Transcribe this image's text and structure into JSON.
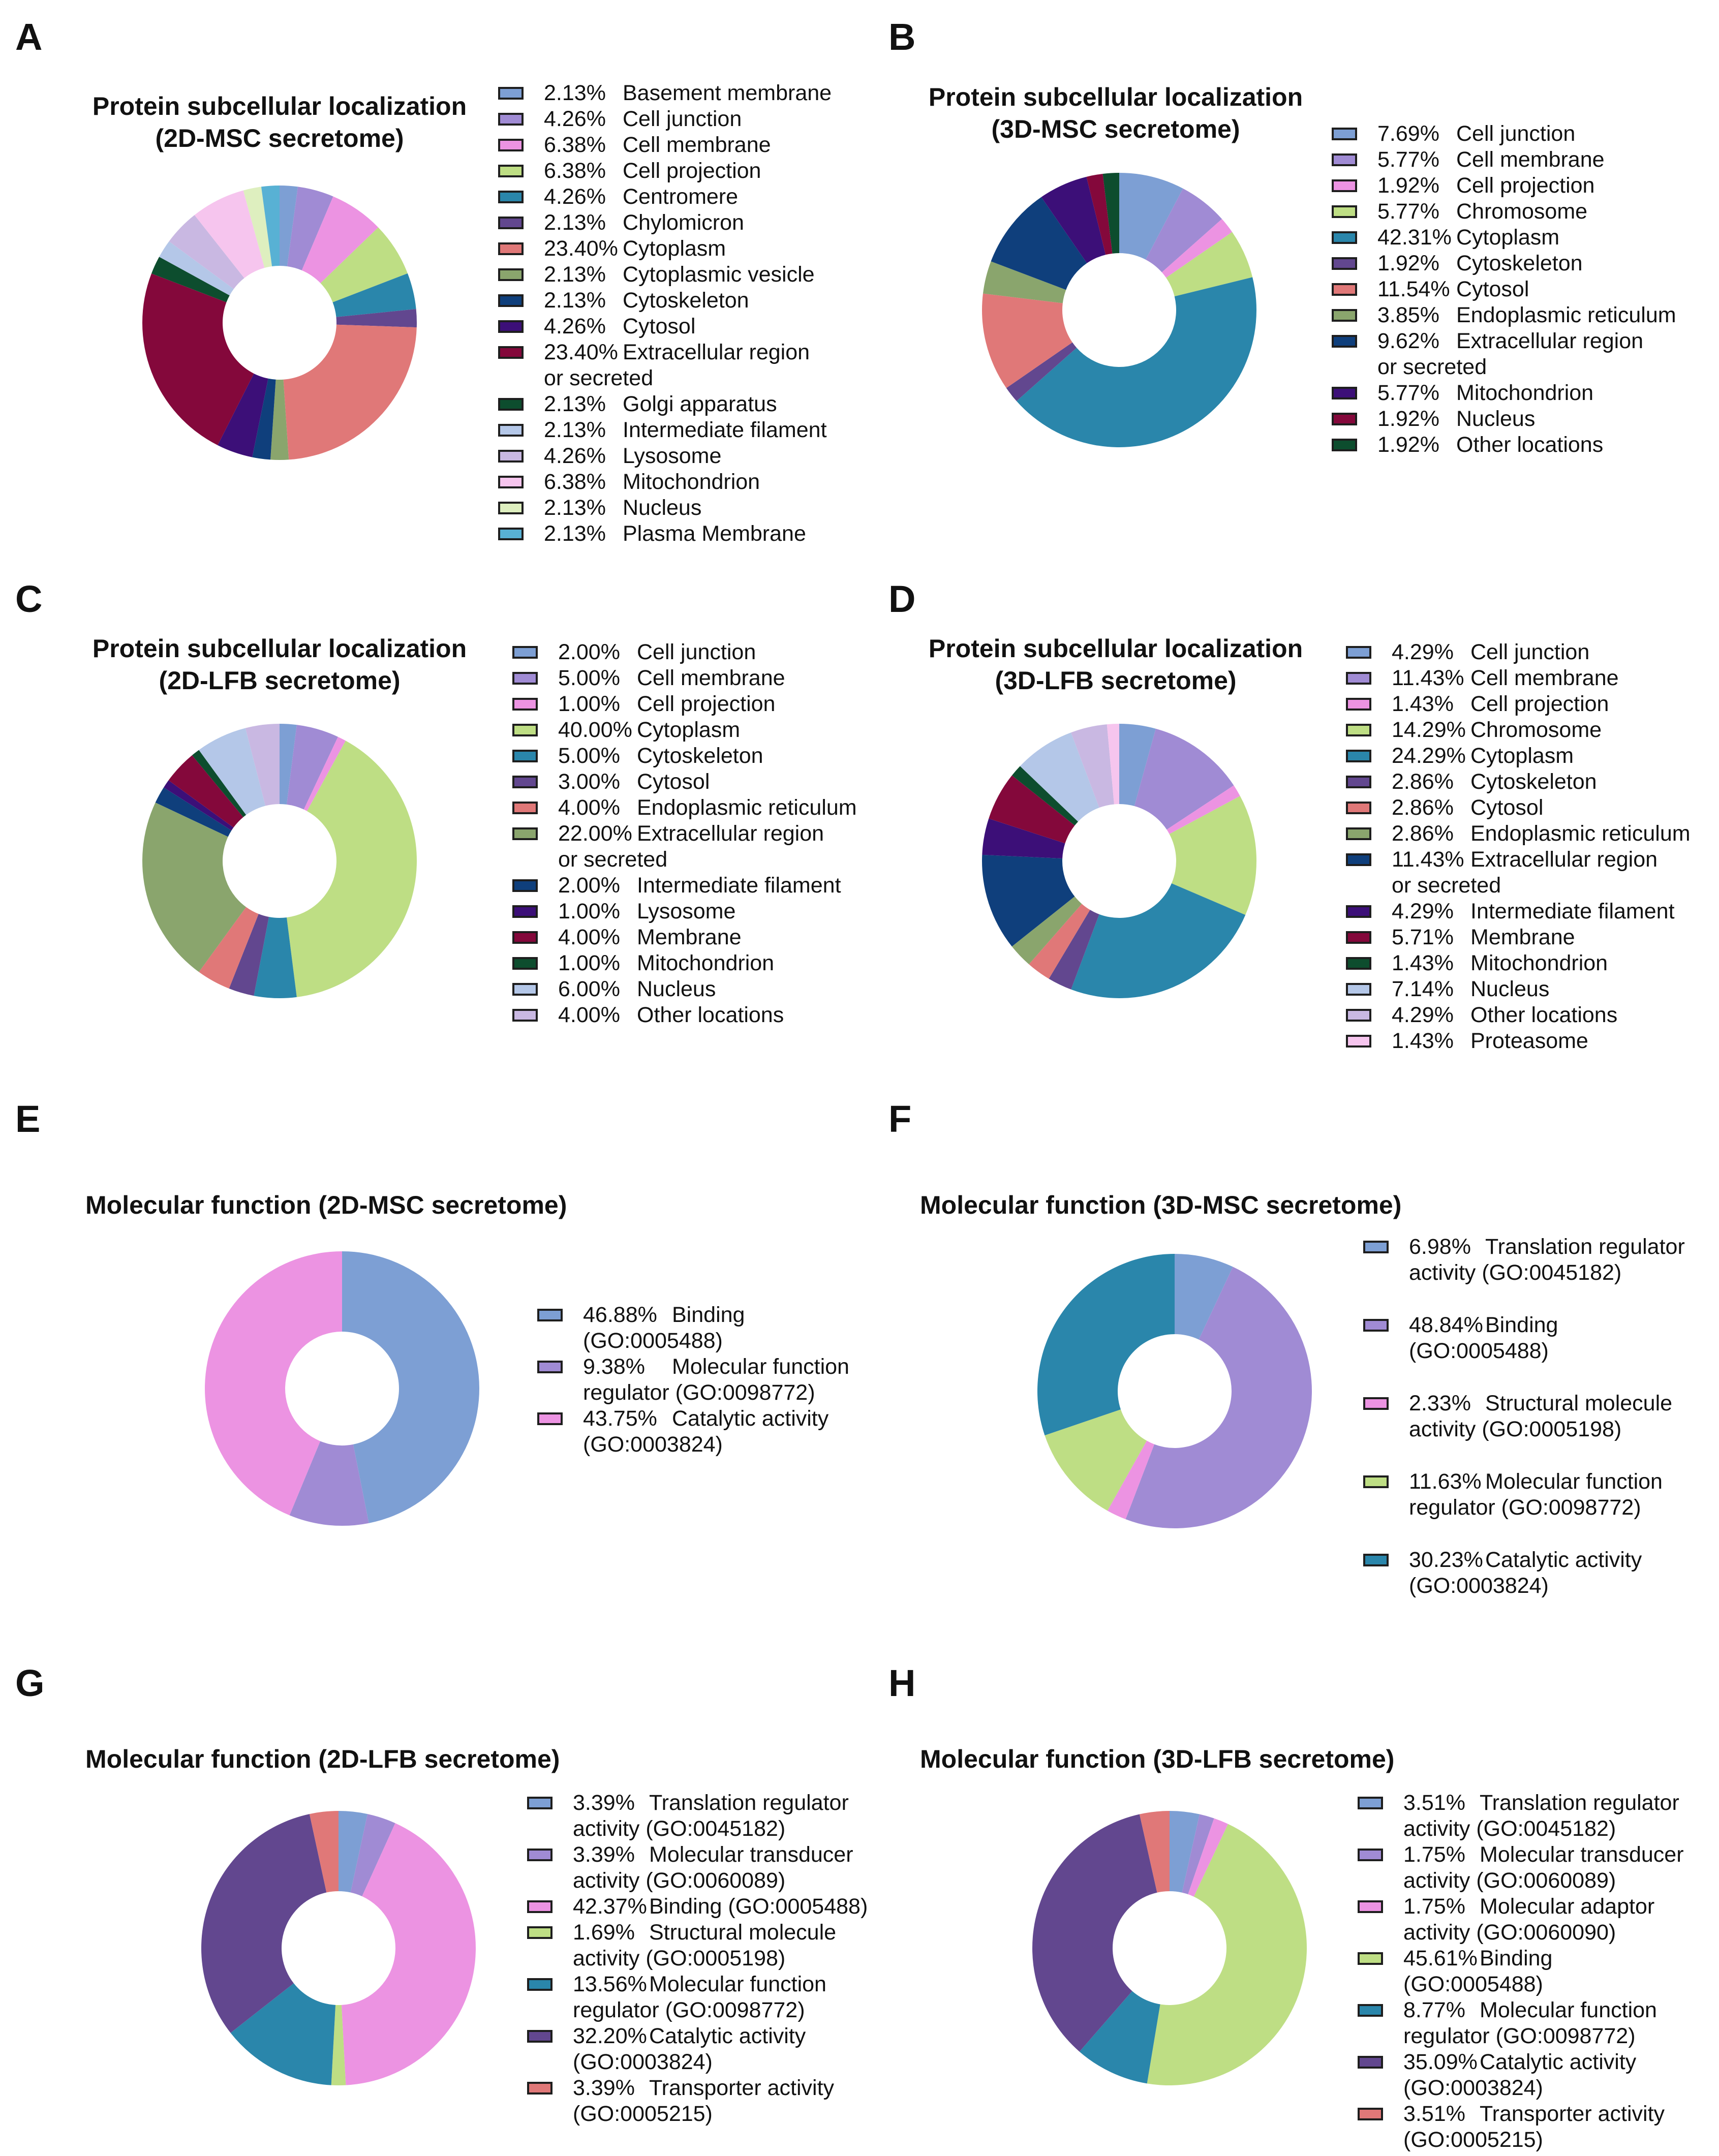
{
  "palette": {
    "c_blue": "#7d9fd4",
    "c_lav": "#a08bd4",
    "c_pink": "#ec93e2",
    "c_lime": "#bede84",
    "c_teal": "#2a86ab",
    "c_purple": "#62478f",
    "c_salmon": "#e07878",
    "c_sage": "#8aa56d",
    "c_navy": "#0f3f7c",
    "c_indigo": "#3c0f78",
    "c_maroon": "#84083b",
    "c_green": "#0d4d2e",
    "c_lblue": "#b4c7e8",
    "c_llav": "#c9b8e2",
    "c_lpink": "#f6c5ee",
    "c_lgreen": "#deefbf",
    "c_cyan": "#58b1d4"
  },
  "panels": [
    {
      "letter": "A",
      "title": [
        "Protein subcellular localization",
        "(2D-MSC secretome)"
      ]
    },
    {
      "letter": "B",
      "title": [
        "Protein subcellular localization",
        "(3D-MSC secretome)"
      ]
    },
    {
      "letter": "C",
      "title": [
        "Protein subcellular localization",
        "(2D-LFB secretome)"
      ]
    },
    {
      "letter": "D",
      "title": [
        "Protein subcellular localization",
        "(3D-LFB secretome)"
      ]
    },
    {
      "letter": "E",
      "title": [
        "Molecular function (2D-MSC secretome)"
      ]
    },
    {
      "letter": "F",
      "title": [
        "Molecular function (3D-MSC secretome)"
      ]
    },
    {
      "letter": "G",
      "title": [
        "Molecular function (2D-LFB secretome)"
      ]
    },
    {
      "letter": "H",
      "title": [
        "Molecular function (3D-LFB secretome)"
      ]
    }
  ],
  "chart_data": [
    {
      "type": "pie",
      "id": "A",
      "title": "Protein subcellular localization (2D-MSC secretome)",
      "donut": true,
      "legend": "right",
      "slices": [
        {
          "label": "Basement membrane",
          "pct": "2.13%",
          "value": 2.13,
          "color": "#7d9fd4"
        },
        {
          "label": "Cell junction",
          "pct": "4.26%",
          "value": 4.26,
          "color": "#a08bd4"
        },
        {
          "label": "Cell membrane",
          "pct": "6.38%",
          "value": 6.38,
          "color": "#ec93e2"
        },
        {
          "label": "Cell projection",
          "pct": "6.38%",
          "value": 6.38,
          "color": "#bede84"
        },
        {
          "label": "Centromere",
          "pct": "4.26%",
          "value": 4.26,
          "color": "#2a86ab"
        },
        {
          "label": "Chylomicron",
          "pct": "2.13%",
          "value": 2.13,
          "color": "#62478f"
        },
        {
          "label": "Cytoplasm",
          "pct": "23.40%",
          "value": 23.4,
          "color": "#e07878"
        },
        {
          "label": "Cytoplasmic vesicle",
          "pct": "2.13%",
          "value": 2.13,
          "color": "#8aa56d"
        },
        {
          "label": "Cytoskeleton",
          "pct": "2.13%",
          "value": 2.13,
          "color": "#0f3f7c"
        },
        {
          "label": "Cytosol",
          "pct": "4.26%",
          "value": 4.26,
          "color": "#3c0f78"
        },
        {
          "label": "Extracellular region",
          "cont": "or secreted",
          "pct": "23.40%",
          "value": 23.4,
          "color": "#84083b"
        },
        {
          "label": "Golgi apparatus",
          "pct": "2.13%",
          "value": 2.13,
          "color": "#0d4d2e"
        },
        {
          "label": "Intermediate filament",
          "pct": "2.13%",
          "value": 2.13,
          "color": "#b4c7e8"
        },
        {
          "label": "Lysosome",
          "pct": "4.26%",
          "value": 4.26,
          "color": "#c9b8e2"
        },
        {
          "label": "Mitochondrion",
          "pct": "6.38%",
          "value": 6.38,
          "color": "#f6c5ee"
        },
        {
          "label": "Nucleus",
          "pct": "2.13%",
          "value": 2.13,
          "color": "#deefbf"
        },
        {
          "label": "Plasma Membrane",
          "pct": "2.13%",
          "value": 2.13,
          "color": "#58b1d4"
        }
      ]
    },
    {
      "type": "pie",
      "id": "B",
      "title": "Protein subcellular localization (3D-MSC secretome)",
      "donut": true,
      "legend": "right",
      "slices": [
        {
          "label": "Cell junction",
          "pct": "7.69%",
          "value": 7.69,
          "color": "#7d9fd4"
        },
        {
          "label": "Cell membrane",
          "pct": "5.77%",
          "value": 5.77,
          "color": "#a08bd4"
        },
        {
          "label": "Cell projection",
          "pct": "1.92%",
          "value": 1.92,
          "color": "#ec93e2"
        },
        {
          "label": "Chromosome",
          "pct": "5.77%",
          "value": 5.77,
          "color": "#bede84"
        },
        {
          "label": "Cytoplasm",
          "pct": "42.31%",
          "value": 42.31,
          "color": "#2a86ab"
        },
        {
          "label": "Cytoskeleton",
          "pct": "1.92%",
          "value": 1.92,
          "color": "#62478f"
        },
        {
          "label": "Cytosol",
          "pct": "11.54%",
          "value": 11.54,
          "color": "#e07878"
        },
        {
          "label": "Endoplasmic reticulum",
          "pct": "3.85%",
          "value": 3.85,
          "color": "#8aa56d"
        },
        {
          "label": "Extracellular region",
          "cont": "or secreted",
          "pct": "9.62%",
          "value": 9.62,
          "color": "#0f3f7c"
        },
        {
          "label": "Mitochondrion",
          "pct": "5.77%",
          "value": 5.77,
          "color": "#3c0f78"
        },
        {
          "label": "Nucleus",
          "pct": "1.92%",
          "value": 1.92,
          "color": "#84083b"
        },
        {
          "label": "Other locations",
          "pct": "1.92%",
          "value": 1.92,
          "color": "#0d4d2e"
        }
      ]
    },
    {
      "type": "pie",
      "id": "C",
      "title": "Protein subcellular localization (2D-LFB secretome)",
      "donut": true,
      "legend": "right",
      "slices": [
        {
          "label": "Cell junction",
          "pct": "2.00%",
          "value": 2.0,
          "color": "#7d9fd4"
        },
        {
          "label": "Cell membrane",
          "pct": "5.00%",
          "value": 5.0,
          "color": "#a08bd4"
        },
        {
          "label": "Cell projection",
          "pct": "1.00%",
          "value": 1.0,
          "color": "#ec93e2"
        },
        {
          "label": "Cytoplasm",
          "pct": "40.00%",
          "value": 40.0,
          "color": "#bede84"
        },
        {
          "label": "Cytoskeleton",
          "pct": "5.00%",
          "value": 5.0,
          "color": "#2a86ab"
        },
        {
          "label": "Cytosol",
          "pct": "3.00%",
          "value": 3.0,
          "color": "#62478f"
        },
        {
          "label": "Endoplasmic reticulum",
          "pct": "4.00%",
          "value": 4.0,
          "color": "#e07878"
        },
        {
          "label": "Extracellular region",
          "cont": "or secreted",
          "pct": "22.00%",
          "value": 22.0,
          "color": "#8aa56d"
        },
        {
          "label": "Intermediate filament",
          "pct": "2.00%",
          "value": 2.0,
          "color": "#0f3f7c"
        },
        {
          "label": "Lysosome",
          "pct": "1.00%",
          "value": 1.0,
          "color": "#3c0f78"
        },
        {
          "label": "Membrane",
          "pct": "4.00%",
          "value": 4.0,
          "color": "#84083b"
        },
        {
          "label": "Mitochondrion",
          "pct": "1.00%",
          "value": 1.0,
          "color": "#0d4d2e"
        },
        {
          "label": "Nucleus",
          "pct": "6.00%",
          "value": 6.0,
          "color": "#b4c7e8"
        },
        {
          "label": "Other locations",
          "pct": "4.00%",
          "value": 4.0,
          "color": "#c9b8e2"
        }
      ]
    },
    {
      "type": "pie",
      "id": "D",
      "title": "Protein subcellular localization (3D-LFB secretome)",
      "donut": true,
      "legend": "right",
      "slices": [
        {
          "label": "Cell junction",
          "pct": "4.29%",
          "value": 4.29,
          "color": "#7d9fd4"
        },
        {
          "label": "Cell membrane",
          "pct": "11.43%",
          "value": 11.43,
          "color": "#a08bd4"
        },
        {
          "label": "Cell projection",
          "pct": "1.43%",
          "value": 1.43,
          "color": "#ec93e2"
        },
        {
          "label": "Chromosome",
          "pct": "14.29%",
          "value": 14.29,
          "color": "#bede84"
        },
        {
          "label": "Cytoplasm",
          "pct": "24.29%",
          "value": 24.29,
          "color": "#2a86ab"
        },
        {
          "label": "Cytoskeleton",
          "pct": "2.86%",
          "value": 2.86,
          "color": "#62478f"
        },
        {
          "label": "Cytosol",
          "pct": "2.86%",
          "value": 2.86,
          "color": "#e07878"
        },
        {
          "label": "Endoplasmic reticulum",
          "pct": "2.86%",
          "value": 2.86,
          "color": "#8aa56d"
        },
        {
          "label": "Extracellular region",
          "cont": "or secreted",
          "pct": "11.43%",
          "value": 11.43,
          "color": "#0f3f7c"
        },
        {
          "label": "Intermediate filament",
          "pct": "4.29%",
          "value": 4.29,
          "color": "#3c0f78"
        },
        {
          "label": "Membrane",
          "pct": "5.71%",
          "value": 5.71,
          "color": "#84083b"
        },
        {
          "label": "Mitochondrion",
          "pct": "1.43%",
          "value": 1.43,
          "color": "#0d4d2e"
        },
        {
          "label": "Nucleus",
          "pct": "7.14%",
          "value": 7.14,
          "color": "#b4c7e8"
        },
        {
          "label": "Other locations",
          "pct": "4.29%",
          "value": 4.29,
          "color": "#c9b8e2"
        },
        {
          "label": "Proteasome",
          "pct": "1.43%",
          "value": 1.43,
          "color": "#f6c5ee"
        }
      ]
    },
    {
      "type": "pie",
      "id": "E",
      "title": "Molecular function (2D-MSC secretome)",
      "donut": true,
      "legend": "right",
      "slices": [
        {
          "label": "Binding",
          "cont": "(GO:0005488)",
          "pct": "46.88%",
          "value": 46.88,
          "color": "#7d9fd4"
        },
        {
          "label": "Molecular function",
          "cont": "regulator (GO:0098772)",
          "pct": "9.38%",
          "value": 9.38,
          "color": "#a08bd4"
        },
        {
          "label": "Catalytic activity",
          "cont": "(GO:0003824)",
          "pct": "43.75%",
          "value": 43.75,
          "color": "#ec93e2"
        }
      ]
    },
    {
      "type": "pie",
      "id": "F",
      "title": "Molecular function (3D-MSC secretome)",
      "donut": true,
      "legend": "right",
      "slices": [
        {
          "label": "Translation regulator",
          "cont": "activity (GO:0045182)",
          "pct": "6.98%",
          "value": 6.98,
          "color": "#7d9fd4"
        },
        {
          "label": "Binding",
          "cont": "(GO:0005488)",
          "pct": "48.84%",
          "value": 48.84,
          "color": "#a08bd4"
        },
        {
          "label": "Structural molecule",
          "cont": "activity (GO:0005198)",
          "pct": "2.33%",
          "value": 2.33,
          "color": "#ec93e2"
        },
        {
          "label": "Molecular function",
          "cont": "regulator (GO:0098772)",
          "pct": "11.63%",
          "value": 11.63,
          "color": "#bede84"
        },
        {
          "label": "Catalytic activity",
          "cont": "(GO:0003824)",
          "pct": "30.23%",
          "value": 30.23,
          "color": "#2a86ab"
        }
      ]
    },
    {
      "type": "pie",
      "id": "G",
      "title": "Molecular function (2D-LFB secretome)",
      "donut": true,
      "legend": "right",
      "slices": [
        {
          "label": "Translation regulator",
          "cont": "activity (GO:0045182)",
          "pct": "3.39%",
          "value": 3.39,
          "color": "#7d9fd4"
        },
        {
          "label": "Molecular transducer",
          "cont": "activity (GO:0060089)",
          "pct": "3.39%",
          "value": 3.39,
          "color": "#a08bd4"
        },
        {
          "label": "Binding (GO:0005488)",
          "pct": "42.37%",
          "value": 42.37,
          "color": "#ec93e2"
        },
        {
          "label": "Structural molecule",
          "cont": "activity (GO:0005198)",
          "pct": "1.69%",
          "value": 1.69,
          "color": "#bede84"
        },
        {
          "label": "Molecular function",
          "cont": "regulator (GO:0098772)",
          "pct": "13.56%",
          "value": 13.56,
          "color": "#2a86ab"
        },
        {
          "label": "Catalytic activity",
          "cont": "(GO:0003824)",
          "pct": "32.20%",
          "value": 32.2,
          "color": "#62478f"
        },
        {
          "label": "Transporter activity",
          "cont": "(GO:0005215)",
          "pct": "3.39%",
          "value": 3.39,
          "color": "#e07878"
        }
      ]
    },
    {
      "type": "pie",
      "id": "H",
      "title": "Molecular function (3D-LFB secretome)",
      "donut": true,
      "legend": "right",
      "slices": [
        {
          "label": "Translation regulator",
          "cont": "activity (GO:0045182)",
          "pct": "3.51%",
          "value": 3.51,
          "color": "#7d9fd4"
        },
        {
          "label": "Molecular transducer",
          "cont": "activity (GO:0060089)",
          "pct": "1.75%",
          "value": 1.75,
          "color": "#a08bd4"
        },
        {
          "label": "Molecular adaptor",
          "cont": "activity (GO:0060090)",
          "pct": "1.75%",
          "value": 1.75,
          "color": "#ec93e2"
        },
        {
          "label": "Binding",
          "cont": "(GO:0005488)",
          "pct": "45.61%",
          "value": 45.61,
          "color": "#bede84"
        },
        {
          "label": "Molecular function",
          "cont": "regulator (GO:0098772)",
          "pct": "8.77%",
          "value": 8.77,
          "color": "#2a86ab"
        },
        {
          "label": "Catalytic activity",
          "cont": "(GO:0003824)",
          "pct": "35.09%",
          "value": 35.09,
          "color": "#62478f"
        },
        {
          "label": "Transporter activity",
          "cont": "(GO:0005215)",
          "pct": "3.51%",
          "value": 3.51,
          "color": "#e07878"
        }
      ]
    }
  ]
}
